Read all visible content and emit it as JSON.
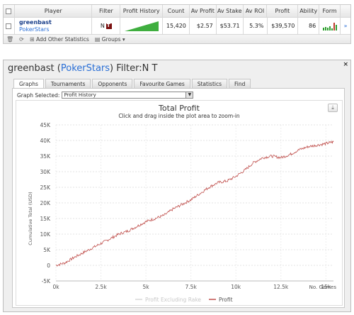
{
  "table": {
    "headers": [
      "Player",
      "Filter",
      "Profit History",
      "Count",
      "Av Profit",
      "Av Stake",
      "Av ROI",
      "Profit",
      "Ability",
      "Form"
    ],
    "row": {
      "name": "greenbast",
      "site": "PokerStars",
      "filter": "N",
      "count": "15,420",
      "av_profit": "$2.57",
      "av_stake": "$53.71",
      "av_roi": "5.3%",
      "profit": "$39,570",
      "ability": "86",
      "form": [
        3,
        4,
        3,
        5,
        2,
        9,
        6
      ],
      "form_colors": [
        "#2e9e2e",
        "#2e9e2e",
        "#2e9e2e",
        "#2e9e2e",
        "#2e9e2e",
        "#c0392b",
        "#2e9e2e"
      ]
    },
    "toolbar": {
      "add_stats": "Add Other Statistics",
      "groups": "Groups"
    }
  },
  "dialog": {
    "player": "greenbast",
    "site": "PokerStars",
    "filter_label": "Filter:N T",
    "close": "×",
    "tabs": [
      "Graphs",
      "Tournaments",
      "Opponents",
      "Favourite Games",
      "Statistics",
      "Find"
    ],
    "active_tab": 0,
    "graph_selected_label": "Graph Selected:",
    "graph_selected_value": "Profit History"
  },
  "chart_data": {
    "type": "line",
    "title": "Total Profit",
    "subtitle": "Click and drag inside the plot area to zoom-in",
    "ylabel": "Cumulative Total (USD)",
    "xlabel": "No. Games",
    "xlim": [
      0,
      15420
    ],
    "ylim": [
      -5000,
      45000
    ],
    "x_ticks": [
      "0k",
      "2.5k",
      "5k",
      "7.5k",
      "10k",
      "12.5k",
      "15k"
    ],
    "y_ticks": [
      "-5K",
      "0",
      "5K",
      "10K",
      "15K",
      "20K",
      "25K",
      "30K",
      "35K",
      "40K",
      "45K"
    ],
    "legend": [
      "Profit Excluding Rake",
      "Profit"
    ],
    "legend_position": "bottom",
    "series": [
      {
        "name": "Profit",
        "color": "#c0504d",
        "x": [
          0,
          500,
          1000,
          1500,
          2000,
          2500,
          3000,
          3500,
          4000,
          4500,
          5000,
          5500,
          6000,
          6500,
          7000,
          7500,
          8000,
          8500,
          9000,
          9500,
          10000,
          10500,
          11000,
          11500,
          12000,
          12500,
          13000,
          13500,
          14000,
          14500,
          15000,
          15420
        ],
        "y": [
          0,
          800,
          2500,
          4000,
          5500,
          7000,
          8500,
          10000,
          11000,
          12500,
          14000,
          15000,
          16000,
          18000,
          19500,
          21000,
          23000,
          25000,
          26500,
          27000,
          28500,
          30500,
          33000,
          34500,
          35000,
          34500,
          35500,
          37000,
          38000,
          38500,
          39000,
          39570
        ]
      }
    ]
  }
}
